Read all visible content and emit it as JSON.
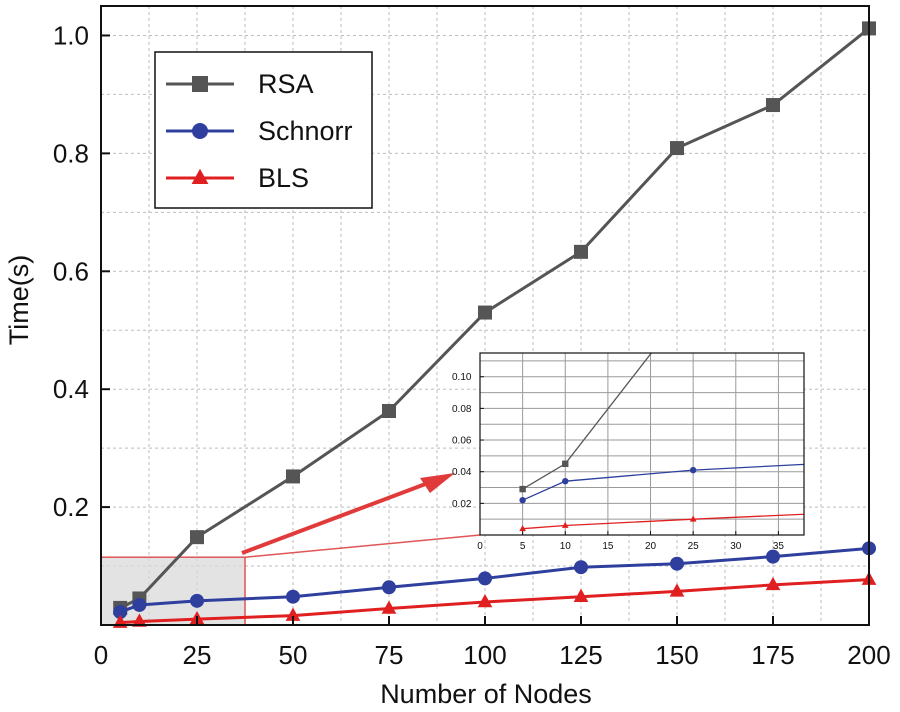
{
  "chart_data": {
    "type": "line",
    "title": "",
    "xlabel": "Number of Nodes",
    "ylabel": "Time(s)",
    "xlim": [
      0,
      200
    ],
    "ylim": [
      0,
      1.05
    ],
    "x_ticks": [
      0,
      25,
      50,
      75,
      100,
      125,
      150,
      175,
      200
    ],
    "y_ticks": [
      0.2,
      0.4,
      0.6,
      0.8,
      1.0
    ],
    "x_tick_labels": [
      "0",
      "25",
      "50",
      "75",
      "100",
      "125",
      "150",
      "175",
      "200"
    ],
    "y_tick_labels": [
      "0.2",
      "0.4",
      "0.6",
      "0.8",
      "1.0"
    ],
    "grid": true,
    "legend_position": "top-left",
    "series": [
      {
        "name": "RSA",
        "color": "#555555",
        "marker": "square",
        "x": [
          5,
          10,
          25,
          50,
          75,
          100,
          125,
          150,
          175,
          200
        ],
        "values": [
          0.029,
          0.045,
          0.149,
          0.252,
          0.363,
          0.53,
          0.633,
          0.809,
          0.882,
          1.012
        ]
      },
      {
        "name": "Schnorr",
        "color": "#2e3f9e",
        "marker": "circle",
        "x": [
          5,
          10,
          25,
          50,
          75,
          100,
          125,
          150,
          175,
          200
        ],
        "values": [
          0.022,
          0.034,
          0.041,
          0.048,
          0.064,
          0.079,
          0.098,
          0.104,
          0.116,
          0.13
        ]
      },
      {
        "name": "BLS",
        "color": "#e02020",
        "marker": "triangle",
        "x": [
          5,
          10,
          25,
          50,
          75,
          100,
          125,
          150,
          175,
          200
        ],
        "values": [
          0.004,
          0.006,
          0.01,
          0.016,
          0.028,
          0.039,
          0.048,
          0.057,
          0.068,
          0.077
        ]
      }
    ],
    "zoom_region": {
      "xlim": [
        0,
        37.5
      ],
      "ylim": [
        0,
        0.115
      ]
    },
    "inset": {
      "xlim": [
        0,
        38
      ],
      "ylim": [
        0,
        0.115
      ],
      "x_ticks": [
        0,
        5,
        10,
        15,
        20,
        25,
        30,
        35
      ],
      "y_ticks": [
        0.02,
        0.04,
        0.06,
        0.08,
        0.1
      ],
      "x_tick_labels": [
        "0",
        "5",
        "10",
        "15",
        "20",
        "25",
        "30",
        "35"
      ],
      "y_tick_labels": [
        "0.02",
        "0.04",
        "0.06",
        "0.08",
        "0.10"
      ]
    }
  }
}
